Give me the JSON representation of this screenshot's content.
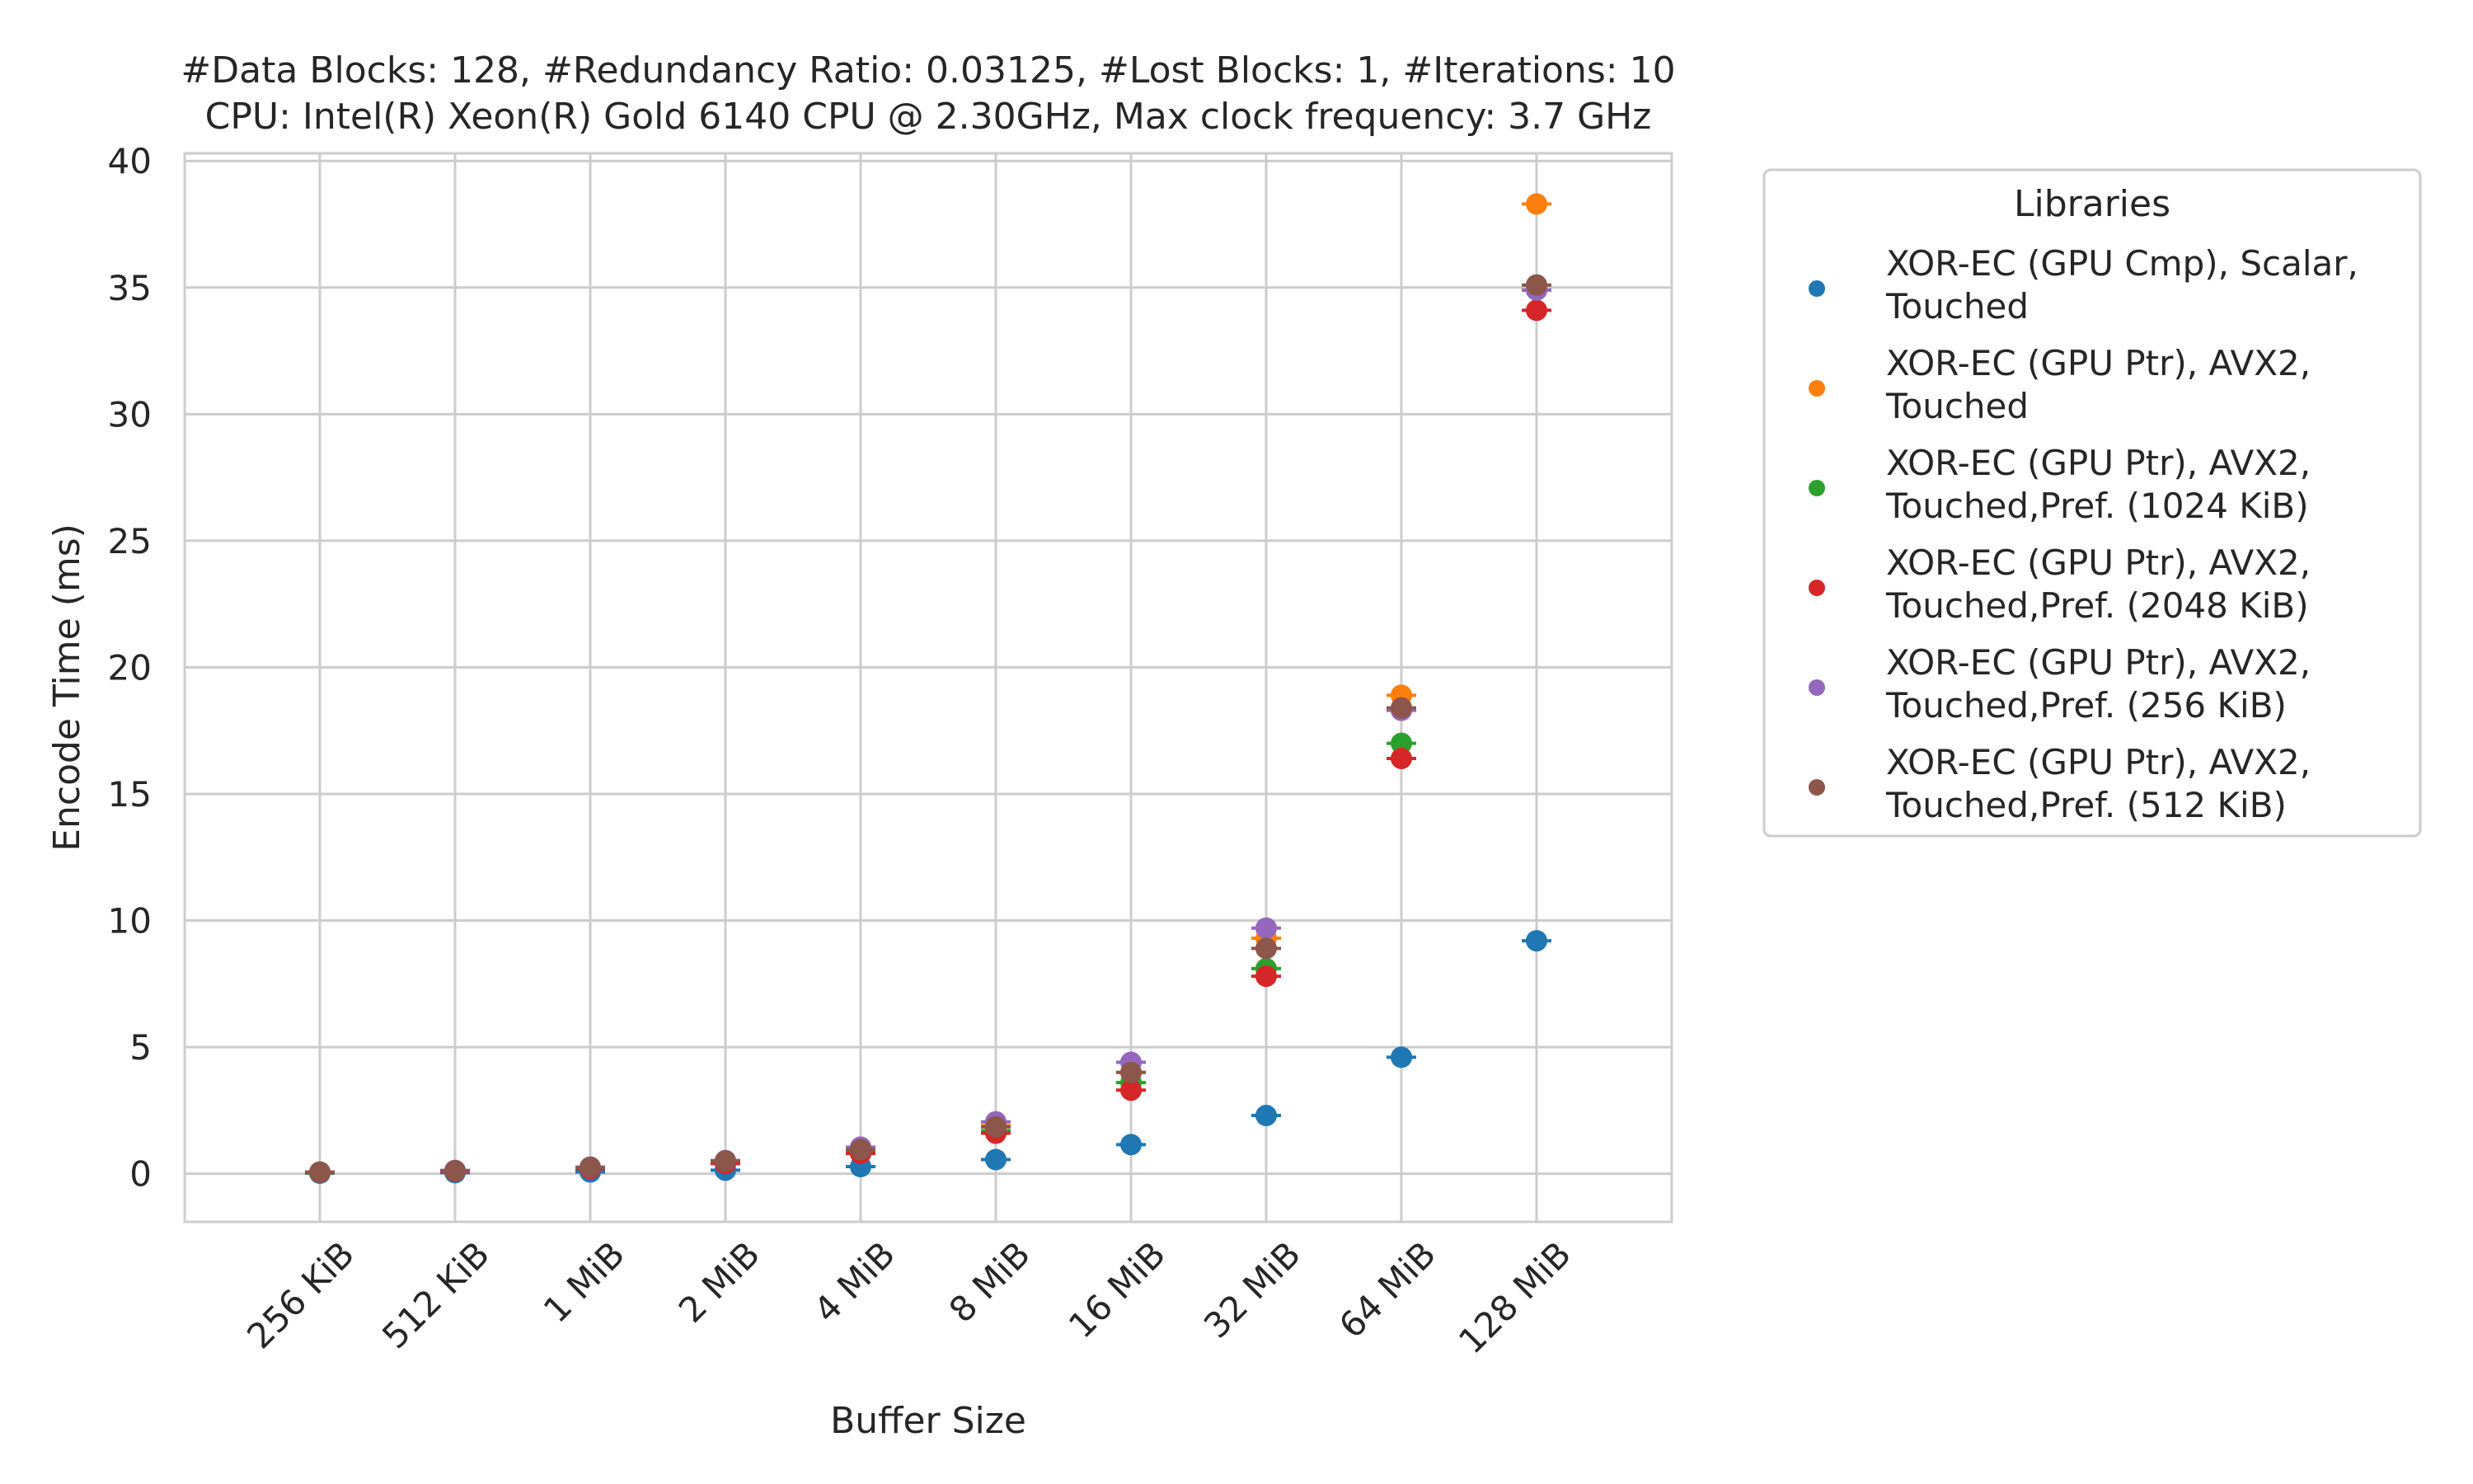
{
  "chart_data": {
    "type": "scatter",
    "title_lines": [
      "#Data Blocks: 128, #Redundancy Ratio: 0.03125, #Lost Blocks: 1, #Iterations: 10",
      "CPU: Intel(R) Xeon(R) Gold 6140 CPU @ 2.30GHz, Max clock frequency: 3.7 GHz"
    ],
    "xlabel": "Buffer Size",
    "ylabel": "Encode Time (ms)",
    "categories": [
      "256 KiB",
      "512 KiB",
      "1 MiB",
      "2 MiB",
      "4 MiB",
      "8 MiB",
      "16 MiB",
      "32 MiB",
      "64 MiB",
      "128 MiB"
    ],
    "ylim": [
      -1.9,
      40.3
    ],
    "yticks": [
      0,
      5,
      10,
      15,
      20,
      25,
      30,
      35,
      40
    ],
    "grid": true,
    "error_bars": true,
    "legend": {
      "title": "Libraries",
      "placement": "outside-right"
    },
    "series": [
      {
        "name": "XOR-EC (GPU Cmp), Scalar, Touched",
        "legend_lines": [
          "XOR-EC (GPU Cmp), Scalar,",
          "Touched"
        ],
        "color": "#1f77b4",
        "values": [
          0.02,
          0.04,
          0.07,
          0.14,
          0.28,
          0.56,
          1.15,
          2.3,
          4.6,
          9.2
        ]
      },
      {
        "name": "XOR-EC (GPU Ptr), AVX2, Touched",
        "legend_lines": [
          "XOR-EC (GPU Ptr), AVX2,",
          "Touched"
        ],
        "color": "#ff7f0e",
        "values": [
          0.06,
          0.12,
          0.24,
          0.47,
          0.95,
          1.9,
          4.0,
          9.3,
          18.9,
          38.3
        ]
      },
      {
        "name": "XOR-EC (GPU Ptr), AVX2, Touched,Pref. (1024 KiB)",
        "legend_lines": [
          "XOR-EC (GPU Ptr), AVX2,",
          "Touched,Pref. (1024 KiB)"
        ],
        "color": "#2ca02c",
        "values": [
          0.05,
          0.1,
          0.21,
          0.42,
          0.84,
          1.7,
          3.6,
          8.1,
          17.0,
          34.9
        ]
      },
      {
        "name": "XOR-EC (GPU Ptr), AVX2, Touched,Pref. (2048 KiB)",
        "legend_lines": [
          "XOR-EC (GPU Ptr), AVX2,",
          "Touched,Pref. (2048 KiB)"
        ],
        "color": "#d62728",
        "values": [
          0.05,
          0.1,
          0.2,
          0.4,
          0.8,
          1.6,
          3.3,
          7.8,
          16.4,
          34.1
        ]
      },
      {
        "name": "XOR-EC (GPU Ptr), AVX2, Touched,Pref. (256 KiB)",
        "legend_lines": [
          "XOR-EC (GPU Ptr), AVX2,",
          "Touched,Pref. (256 KiB)"
        ],
        "color": "#9467bd",
        "values": [
          0.06,
          0.13,
          0.26,
          0.52,
          1.05,
          2.05,
          4.4,
          9.7,
          18.3,
          34.9
        ]
      },
      {
        "name": "XOR-EC (GPU Ptr), AVX2, Touched,Pref. (512 KiB)",
        "legend_lines": [
          "XOR-EC (GPU Ptr), AVX2,",
          "Touched,Pref. (512 KiB)"
        ],
        "color": "#8c564b",
        "values": [
          0.06,
          0.12,
          0.25,
          0.5,
          0.95,
          1.85,
          4.0,
          8.9,
          18.4,
          35.1
        ]
      }
    ]
  }
}
